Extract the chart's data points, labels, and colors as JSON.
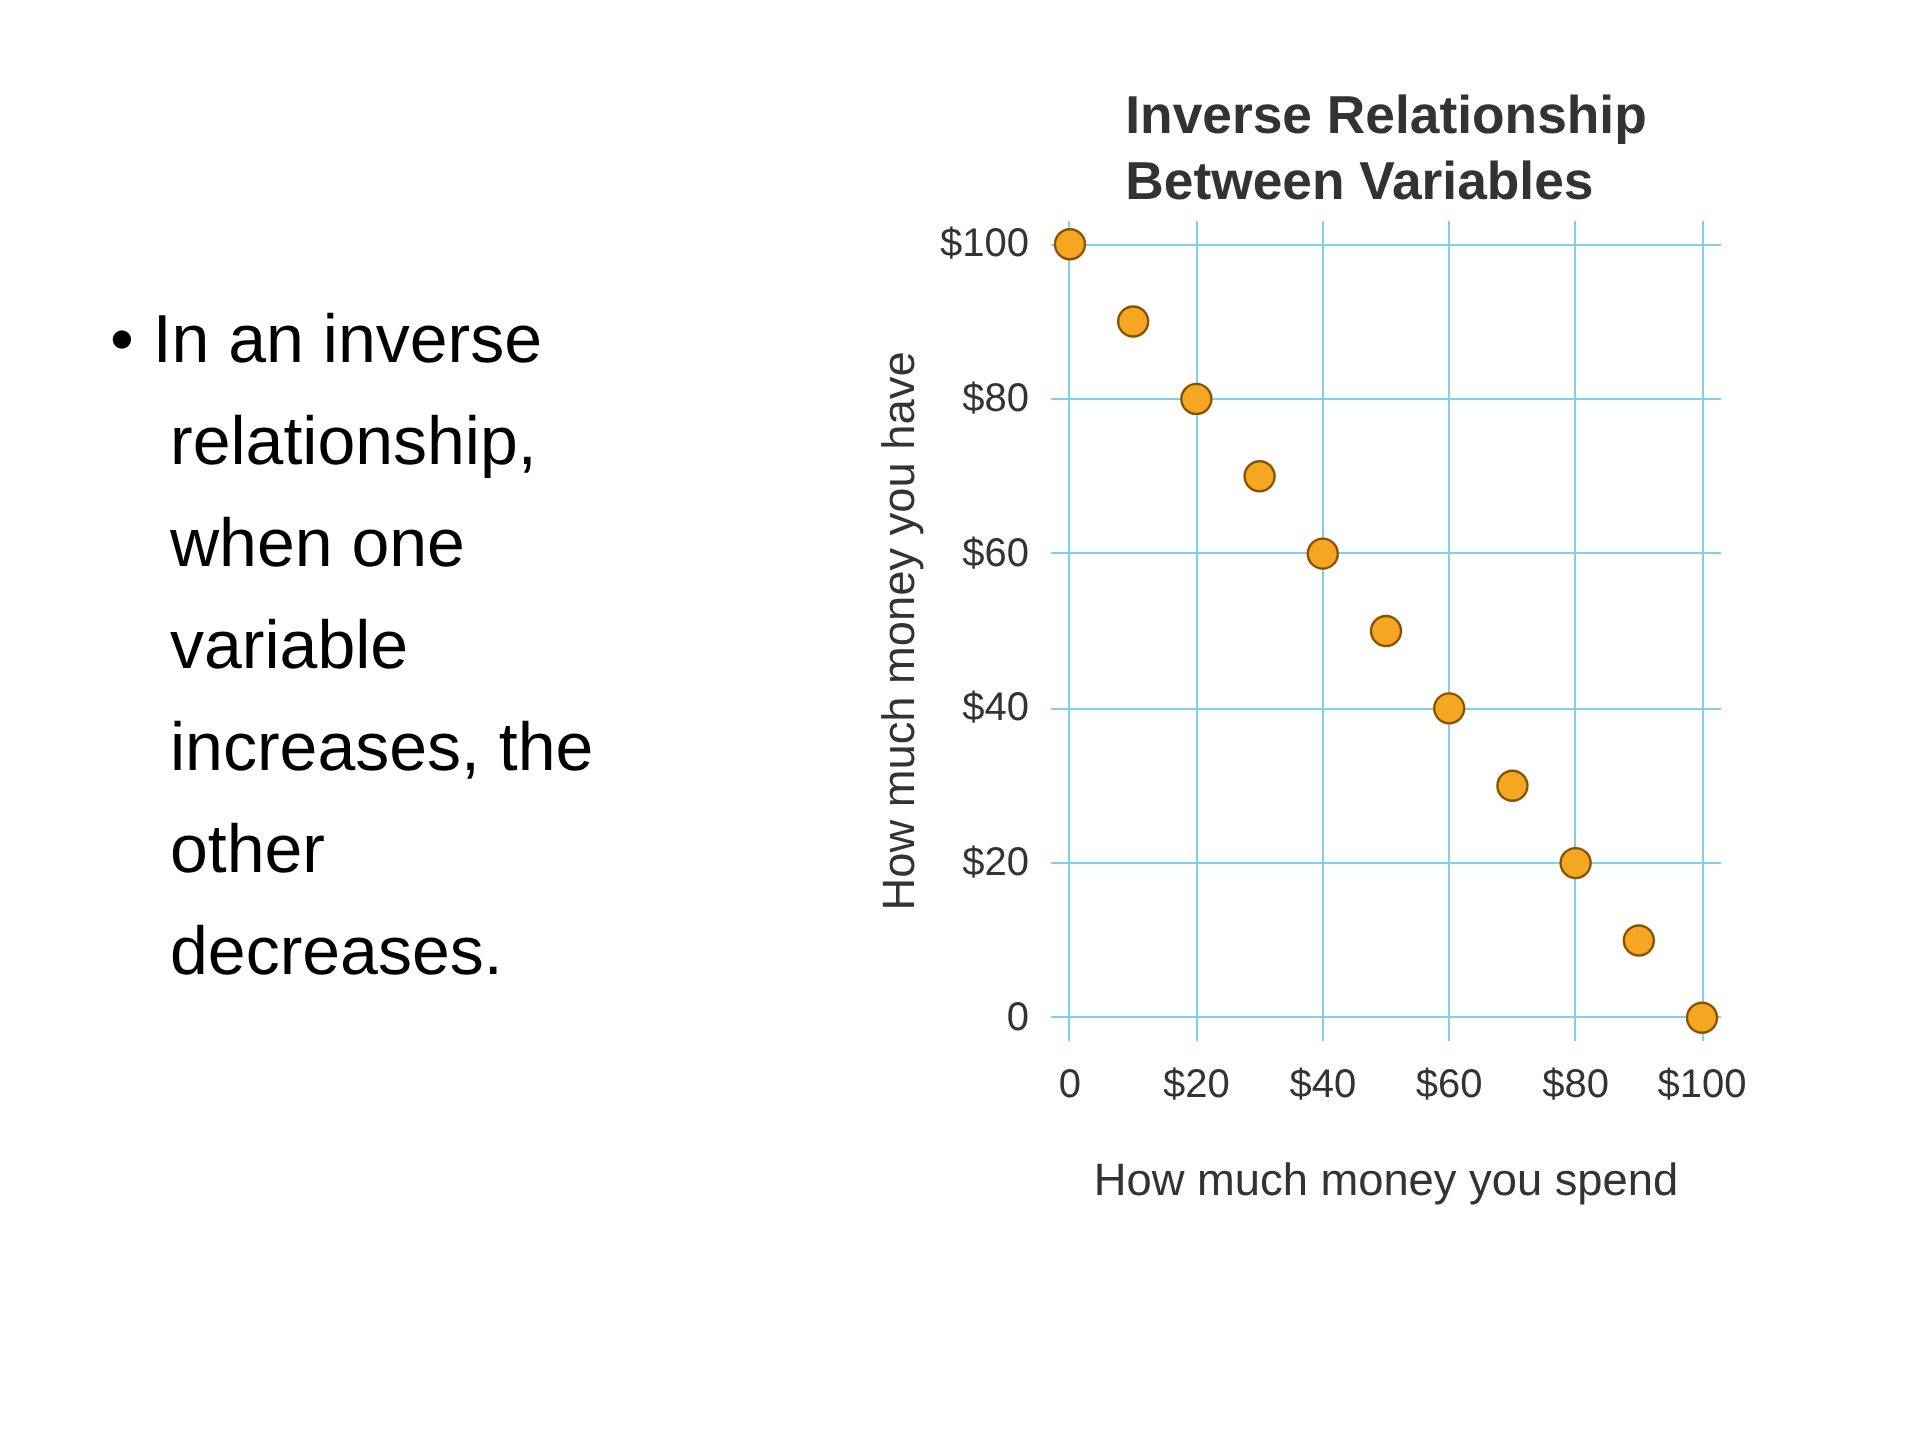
{
  "chart_data": {
    "type": "scatter",
    "title": "Inverse Relationship\nBetween Variables",
    "xlabel": "How much money you spend",
    "ylabel": "How much money you have",
    "annotations": [
      "• In an inverse relationship, when one variable increases, the other decreases."
    ],
    "x": [
      0,
      10,
      20,
      30,
      40,
      50,
      60,
      70,
      80,
      90,
      100
    ],
    "series": [
      {
        "color": "#f5a623",
        "values": [
          100,
          90,
          80,
          70,
          60,
          50,
          40,
          30,
          20,
          10,
          0
        ]
      }
    ],
    "xlim": [
      -3,
      103
    ],
    "ylim": [
      -3,
      103
    ],
    "xticks": [
      {
        "value": 0,
        "label": "0"
      },
      {
        "value": 20,
        "label": "$20"
      },
      {
        "value": 40,
        "label": "$40"
      },
      {
        "value": 60,
        "label": "$60"
      },
      {
        "value": 80,
        "label": "$80"
      },
      {
        "value": 100,
        "label": "$100"
      }
    ],
    "yticks": [
      {
        "value": 0,
        "label": "0"
      },
      {
        "value": 20,
        "label": "$20"
      },
      {
        "value": 40,
        "label": "$40"
      },
      {
        "value": 60,
        "label": "$60"
      },
      {
        "value": 80,
        "label": "$80"
      },
      {
        "value": 100,
        "label": "$100"
      }
    ],
    "grid": true,
    "marker": "circle"
  }
}
